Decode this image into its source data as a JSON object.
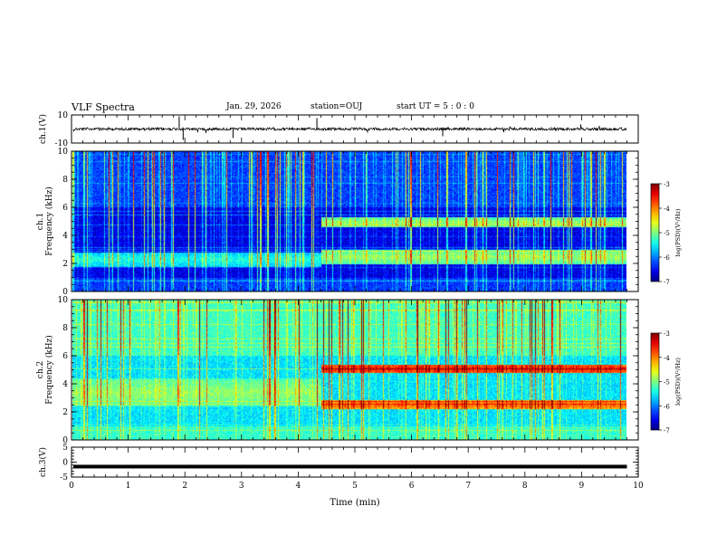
{
  "header": {
    "title": "VLF Spectra",
    "date": "Jan. 29, 2026",
    "station": "station=OUJ",
    "start": "start UT =  5 : 0 : 0"
  },
  "chart_data": {
    "type": "heatmap",
    "title": "VLF Spectra",
    "xlabel": "Time (min)",
    "xlim": [
      0,
      10
    ],
    "x_ticks": [
      "0",
      "1",
      "2",
      "3",
      "4",
      "5",
      "6",
      "7",
      "8",
      "9",
      "10"
    ],
    "transition_time_min": 4.4,
    "data_end_min": 9.8,
    "panels": [
      {
        "id": "ch1-waveform",
        "kind": "waveform",
        "ylabel": "ch.1(V)",
        "ylim": [
          -10,
          10
        ],
        "y_ticks": [
          "10",
          "-10"
        ],
        "baseline": 0
      },
      {
        "id": "ch1-spectrogram",
        "kind": "spectrogram",
        "ylabel": "ch.1\nFrequency (kHz)",
        "ylabel_channel": "ch.1",
        "ylabel_freq": "Frequency (kHz)",
        "ylim": [
          0,
          10
        ],
        "y_ticks": [
          "0",
          "2",
          "4",
          "6",
          "8",
          "10"
        ],
        "background_level": -6.6,
        "bands": [
          {
            "from_min": 0,
            "to_min": 4.4,
            "f_low": 1.8,
            "f_high": 2.8,
            "level": -5.4
          },
          {
            "from_min": 4.4,
            "to_min": 9.8,
            "f_low": 2.0,
            "f_high": 3.0,
            "level": -4.9
          },
          {
            "from_min": 4.4,
            "to_min": 9.8,
            "f_low": 4.6,
            "f_high": 5.3,
            "level": -4.9
          }
        ],
        "colorbar": {
          "label": "log(PSD)(V²/Hz)",
          "range": [
            -7,
            -3
          ],
          "ticks": [
            "-3",
            "-4",
            "-5",
            "-6",
            "-7"
          ]
        }
      },
      {
        "id": "ch2-spectrogram",
        "kind": "spectrogram",
        "ylabel": "ch.2\nFrequency (kHz)",
        "ylabel_channel": "ch.2",
        "ylabel_freq": "Frequency (kHz)",
        "ylim": [
          0,
          10
        ],
        "y_ticks": [
          "0",
          "2",
          "4",
          "6",
          "8",
          "10"
        ],
        "background_level": -5.6,
        "bands": [
          {
            "from_min": 0,
            "to_min": 4.4,
            "f_low": 2.4,
            "f_high": 4.4,
            "level": -4.9
          },
          {
            "from_min": 4.4,
            "to_min": 9.8,
            "f_low": 2.2,
            "f_high": 2.9,
            "level": -3.9
          },
          {
            "from_min": 4.4,
            "to_min": 9.8,
            "f_low": 4.8,
            "f_high": 5.4,
            "level": -3.6
          }
        ],
        "colorbar": {
          "label": "log(PSD)(V²/Hz)",
          "range": [
            -7,
            -3
          ],
          "ticks": [
            "-3",
            "-4",
            "-5",
            "-6",
            "-7"
          ]
        }
      },
      {
        "id": "ch3-waveform",
        "kind": "dc-level",
        "ylabel": "ch.3(V)",
        "ylim": [
          -5,
          5
        ],
        "y_ticks": [
          "5",
          "0",
          "-5"
        ],
        "level": -1.5
      }
    ]
  }
}
